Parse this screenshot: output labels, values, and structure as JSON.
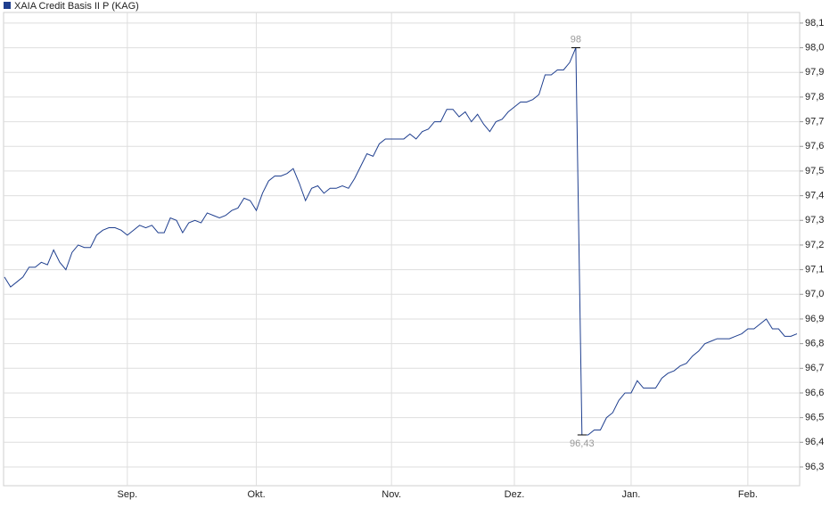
{
  "chart_data": {
    "type": "line",
    "categories": [
      null,
      null,
      null,
      null,
      null,
      null,
      null,
      null,
      null,
      null,
      null,
      null,
      null,
      null,
      null,
      null,
      null,
      null,
      null,
      null,
      "Sep.",
      null,
      null,
      null,
      null,
      null,
      null,
      null,
      null,
      null,
      null,
      null,
      null,
      null,
      null,
      null,
      null,
      null,
      null,
      null,
      null,
      "Okt.",
      null,
      null,
      null,
      null,
      null,
      null,
      null,
      null,
      null,
      null,
      null,
      null,
      null,
      null,
      null,
      null,
      null,
      null,
      null,
      null,
      null,
      "Nov.",
      null,
      null,
      null,
      null,
      null,
      null,
      null,
      null,
      null,
      null,
      null,
      null,
      null,
      null,
      null,
      null,
      null,
      null,
      null,
      "Dez.",
      null,
      null,
      null,
      null,
      null,
      null,
      null,
      null,
      null,
      null,
      null,
      null,
      null,
      null,
      null,
      null,
      null,
      null,
      "Jan.",
      null,
      null,
      null,
      null,
      null,
      null,
      null,
      null,
      null,
      null,
      null,
      null,
      null,
      null,
      null,
      null,
      null,
      null,
      "Feb.",
      null,
      null,
      null,
      null,
      null,
      null,
      null,
      null
    ],
    "series": [
      {
        "name": "XAIA Credit Basis II P (KAG)",
        "color": "#1f3f8f",
        "values": [
          97.07,
          97.03,
          97.05,
          97.07,
          97.11,
          97.11,
          97.13,
          97.12,
          97.18,
          97.13,
          97.1,
          97.17,
          97.2,
          97.19,
          97.19,
          97.24,
          97.26,
          97.27,
          97.27,
          97.26,
          97.24,
          97.26,
          97.28,
          97.27,
          97.28,
          97.25,
          97.25,
          97.31,
          97.3,
          97.25,
          97.29,
          97.3,
          97.29,
          97.33,
          97.32,
          97.31,
          97.32,
          97.34,
          97.35,
          97.39,
          97.38,
          97.34,
          97.41,
          97.46,
          97.48,
          97.48,
          97.49,
          97.51,
          97.45,
          97.38,
          97.43,
          97.44,
          97.41,
          97.43,
          97.43,
          97.44,
          97.43,
          97.47,
          97.52,
          97.57,
          97.56,
          97.61,
          97.63,
          97.63,
          97.63,
          97.63,
          97.65,
          97.63,
          97.66,
          97.67,
          97.7,
          97.7,
          97.75,
          97.75,
          97.72,
          97.74,
          97.7,
          97.73,
          97.69,
          97.66,
          97.7,
          97.71,
          97.74,
          97.76,
          97.78,
          97.78,
          97.79,
          97.81,
          97.89,
          97.89,
          97.91,
          97.91,
          97.94,
          98,
          96.43,
          96.43,
          96.45,
          96.45,
          96.5,
          96.52,
          96.57,
          96.6,
          96.6,
          96.65,
          96.62,
          96.62,
          96.62,
          96.66,
          96.68,
          96.69,
          96.71,
          96.72,
          96.75,
          96.77,
          96.8,
          96.81,
          96.82,
          96.82,
          96.82,
          96.83,
          96.84,
          96.86,
          96.86,
          96.88,
          96.9,
          96.86,
          96.86,
          96.83,
          96.83,
          96.84
        ],
        "value_labels": [
          null,
          null,
          null,
          null,
          null,
          null,
          null,
          null,
          null,
          null,
          null,
          null,
          null,
          null,
          null,
          null,
          null,
          null,
          null,
          null,
          null,
          null,
          null,
          null,
          null,
          null,
          null,
          null,
          null,
          null,
          null,
          null,
          null,
          null,
          null,
          null,
          null,
          null,
          null,
          null,
          null,
          null,
          null,
          null,
          null,
          null,
          null,
          null,
          null,
          null,
          null,
          null,
          null,
          null,
          null,
          null,
          null,
          null,
          null,
          null,
          null,
          null,
          null,
          null,
          null,
          null,
          null,
          null,
          null,
          null,
          null,
          null,
          null,
          null,
          null,
          null,
          null,
          null,
          null,
          null,
          null,
          null,
          null,
          null,
          null,
          null,
          null,
          null,
          null,
          null,
          null,
          null,
          null,
          "98",
          "96,43",
          null,
          null,
          null,
          null,
          null,
          null,
          null,
          null,
          null,
          null,
          null,
          null,
          null,
          null,
          null,
          null,
          null,
          null,
          null,
          null,
          null,
          null,
          null,
          null,
          null,
          null,
          null,
          null,
          null,
          null,
          null,
          null,
          null,
          null,
          null
        ]
      }
    ],
    "ylim": [
      96.224,
      98.143
    ],
    "yticks": [
      {
        "value": 96.3,
        "label": "96,3"
      },
      {
        "value": 96.4,
        "label": "96,4"
      },
      {
        "value": 96.5,
        "label": "96,5"
      },
      {
        "value": 96.6,
        "label": "96,6"
      },
      {
        "value": 96.7,
        "label": "96,7"
      },
      {
        "value": 96.8,
        "label": "96,8"
      },
      {
        "value": 96.9,
        "label": "96,9"
      },
      {
        "value": 97.0,
        "label": "97,0"
      },
      {
        "value": 97.1,
        "label": "97,1"
      },
      {
        "value": 97.2,
        "label": "97,2"
      },
      {
        "value": 97.3,
        "label": "97,3"
      },
      {
        "value": 97.4,
        "label": "97,4"
      },
      {
        "value": 97.5,
        "label": "97,5"
      },
      {
        "value": 97.6,
        "label": "97,6"
      },
      {
        "value": 97.7,
        "label": "97,7"
      },
      {
        "value": 97.8,
        "label": "97,8"
      },
      {
        "value": 97.9,
        "label": "97,9"
      },
      {
        "value": 98.0,
        "label": "98,0"
      },
      {
        "value": 98.1,
        "label": "98,1"
      }
    ],
    "grid": true
  }
}
